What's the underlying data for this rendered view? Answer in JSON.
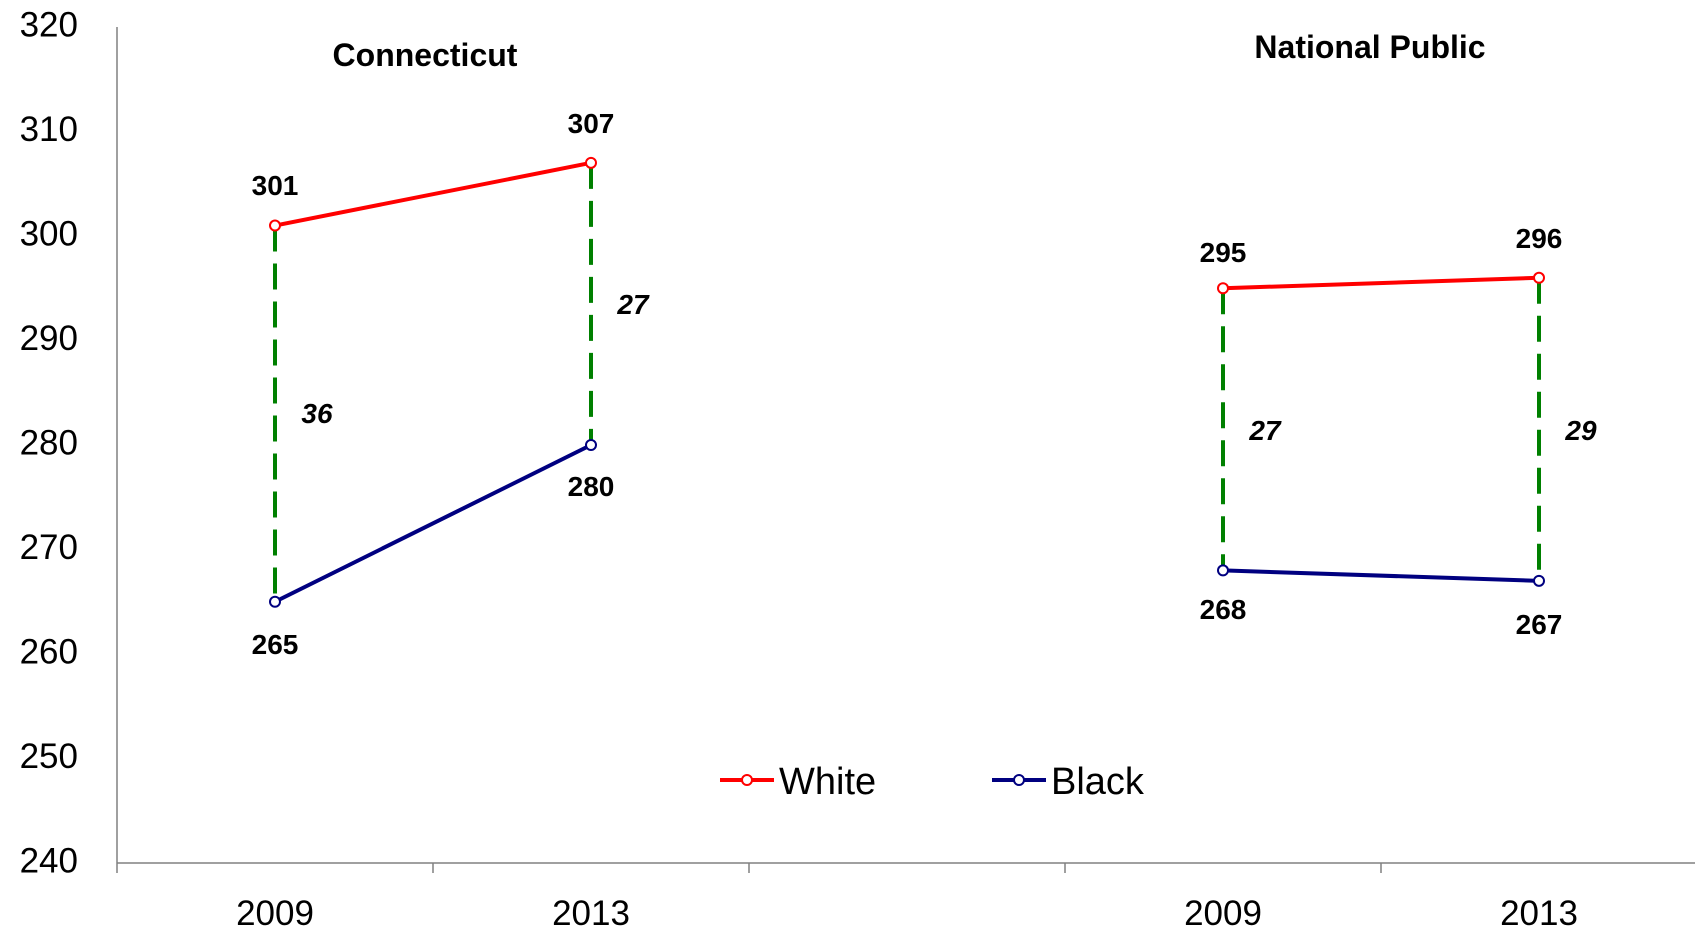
{
  "chart_data": {
    "type": "line",
    "ylim": [
      240,
      320
    ],
    "y_ticks": [
      "320",
      "310",
      "300",
      "290",
      "280",
      "270",
      "260",
      "250",
      "240"
    ],
    "categories": [
      "2009",
      "2013",
      "2009",
      "2013"
    ],
    "panels": [
      {
        "title": "Connecticut",
        "x": [
          "2009",
          "2013"
        ],
        "series": [
          {
            "name": "White",
            "values": [
              301,
              307
            ],
            "labels": [
              "301",
              "307"
            ],
            "color": "#ff0000"
          },
          {
            "name": "Black",
            "values": [
              265,
              280
            ],
            "labels": [
              "265",
              "280"
            ],
            "color": "#000080"
          }
        ],
        "gaps": [
          "36",
          "27"
        ]
      },
      {
        "title": "National Public",
        "x": [
          "2009",
          "2013"
        ],
        "series": [
          {
            "name": "White",
            "values": [
              295,
              296
            ],
            "labels": [
              "295",
              "296"
            ],
            "color": "#ff0000"
          },
          {
            "name": "Black",
            "values": [
              268,
              267
            ],
            "labels": [
              "268",
              "267"
            ],
            "color": "#000080"
          }
        ],
        "gaps": [
          "27",
          "29"
        ]
      }
    ],
    "legend": [
      {
        "name": "White",
        "color": "#ff0000"
      },
      {
        "name": "Black",
        "color": "#000080"
      }
    ],
    "gap_line_color": "#008000",
    "legend_position": "bottom-center",
    "grid": false
  }
}
